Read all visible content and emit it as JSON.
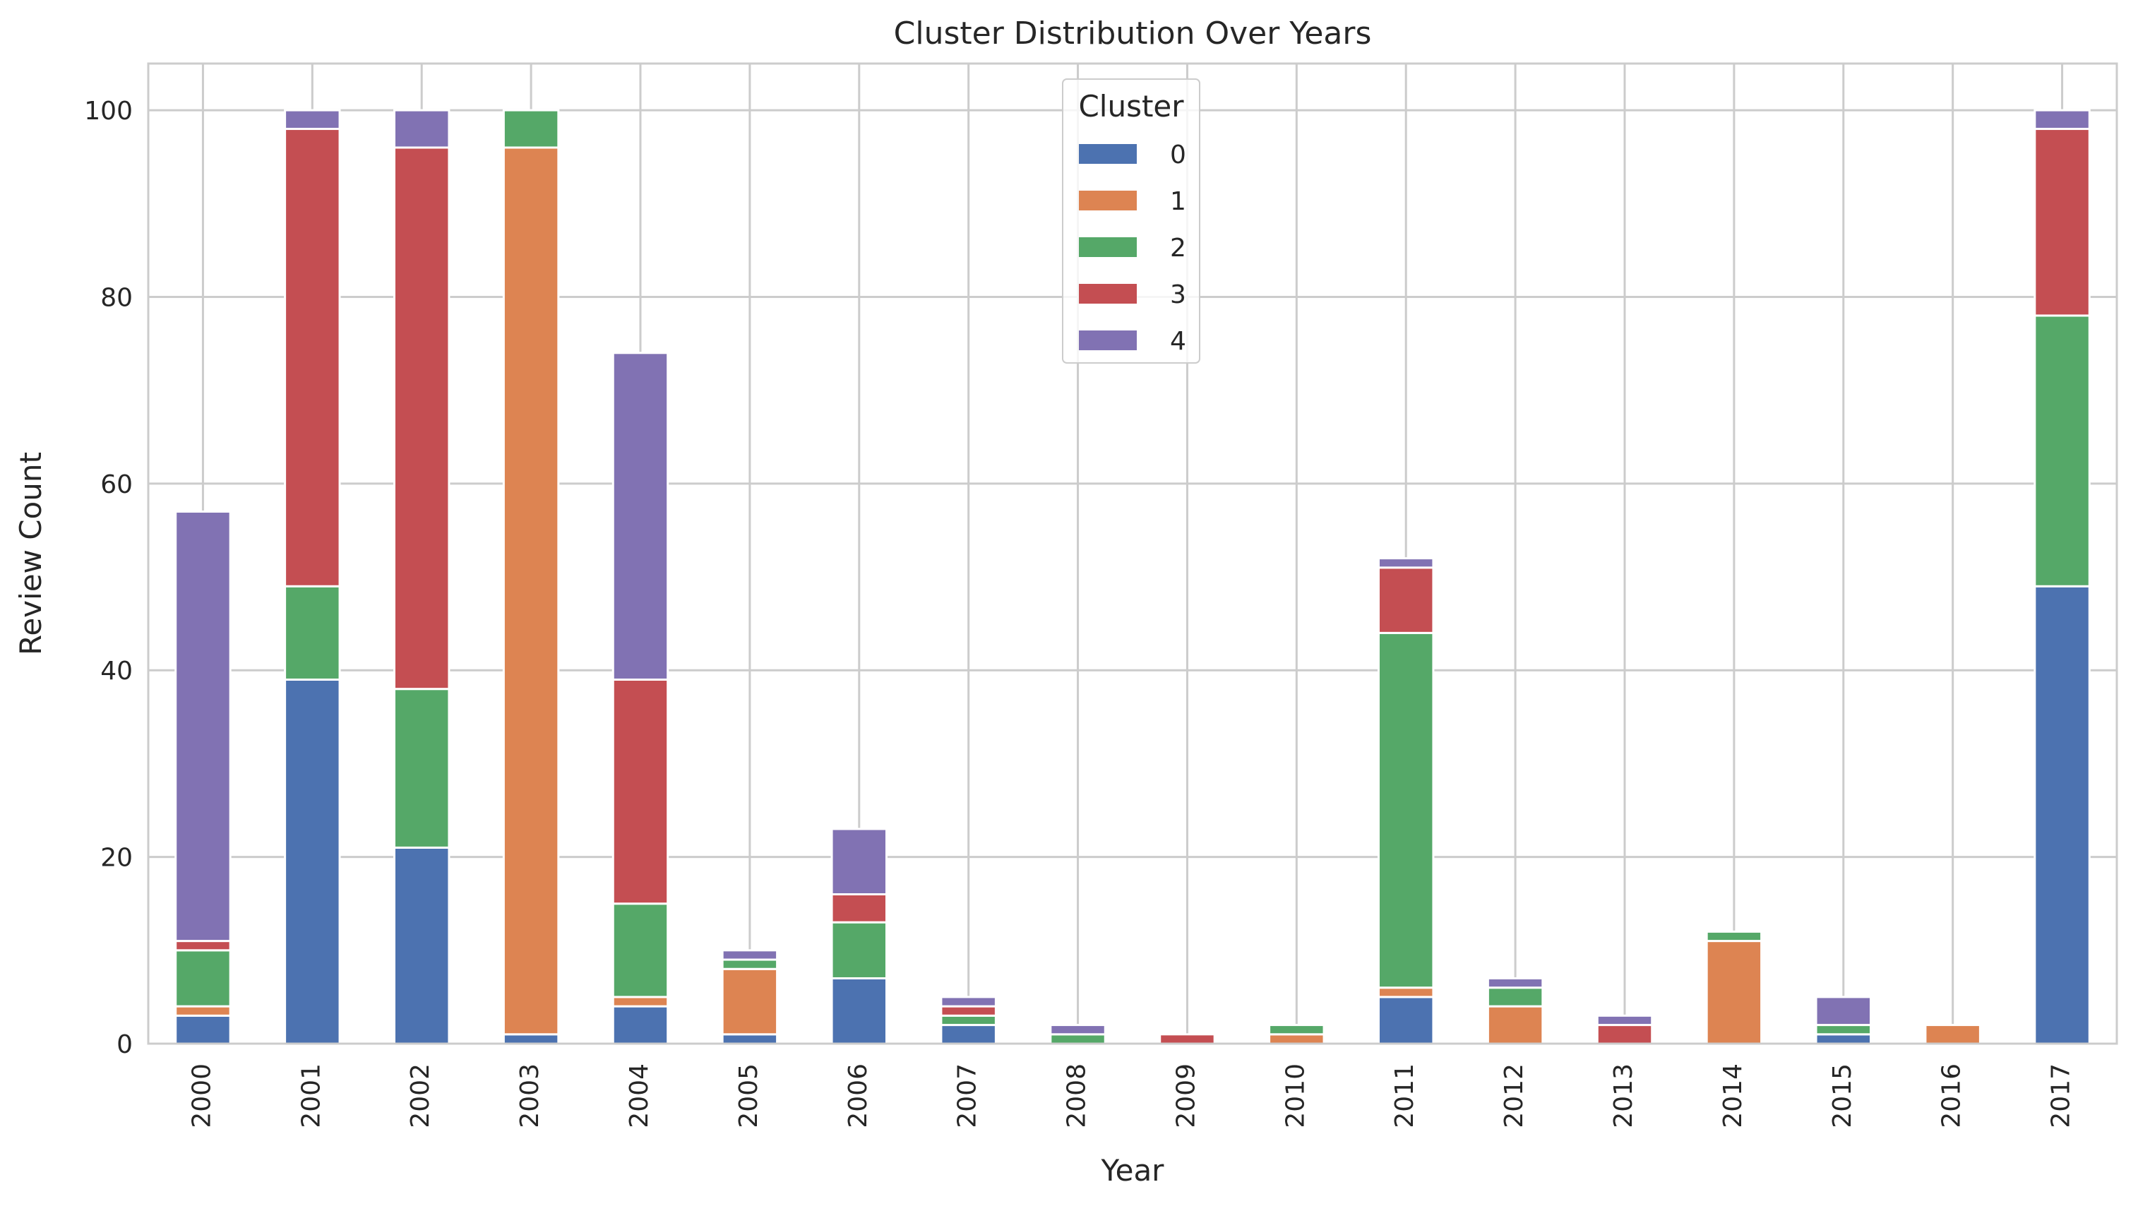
{
  "chart_data": {
    "type": "bar",
    "stacked": true,
    "title": "Cluster Distribution Over Years",
    "xlabel": "Year",
    "ylabel": "Review Count",
    "ylim": [
      0,
      105
    ],
    "yticks": [
      0,
      20,
      40,
      60,
      80,
      100
    ],
    "grid": true,
    "legend": {
      "title": "Cluster",
      "placement": "top-center"
    },
    "categories": [
      "2000",
      "2001",
      "2002",
      "2003",
      "2004",
      "2005",
      "2006",
      "2007",
      "2008",
      "2009",
      "2010",
      "2011",
      "2012",
      "2013",
      "2014",
      "2015",
      "2016",
      "2017"
    ],
    "series": [
      {
        "name": "0",
        "color": "#4c72b0",
        "values": [
          3,
          39,
          21,
          1,
          4,
          1,
          7,
          2,
          0,
          0,
          0,
          5,
          0,
          0,
          0,
          1,
          0,
          49
        ]
      },
      {
        "name": "1",
        "color": "#dd8452",
        "values": [
          1,
          0,
          0,
          95,
          1,
          7,
          0,
          0,
          0,
          0,
          1,
          1,
          4,
          0,
          11,
          0,
          2,
          0
        ]
      },
      {
        "name": "2",
        "color": "#55a868",
        "values": [
          6,
          10,
          17,
          4,
          10,
          1,
          6,
          1,
          1,
          0,
          1,
          38,
          2,
          0,
          1,
          1,
          0,
          29
        ]
      },
      {
        "name": "3",
        "color": "#c44e52",
        "values": [
          1,
          49,
          58,
          0,
          24,
          0,
          3,
          1,
          0,
          1,
          0,
          7,
          0,
          2,
          0,
          0,
          0,
          20
        ]
      },
      {
        "name": "4",
        "color": "#8172b3",
        "values": [
          46,
          2,
          4,
          0,
          35,
          1,
          7,
          1,
          1,
          0,
          0,
          1,
          1,
          1,
          0,
          3,
          0,
          2
        ]
      }
    ]
  }
}
